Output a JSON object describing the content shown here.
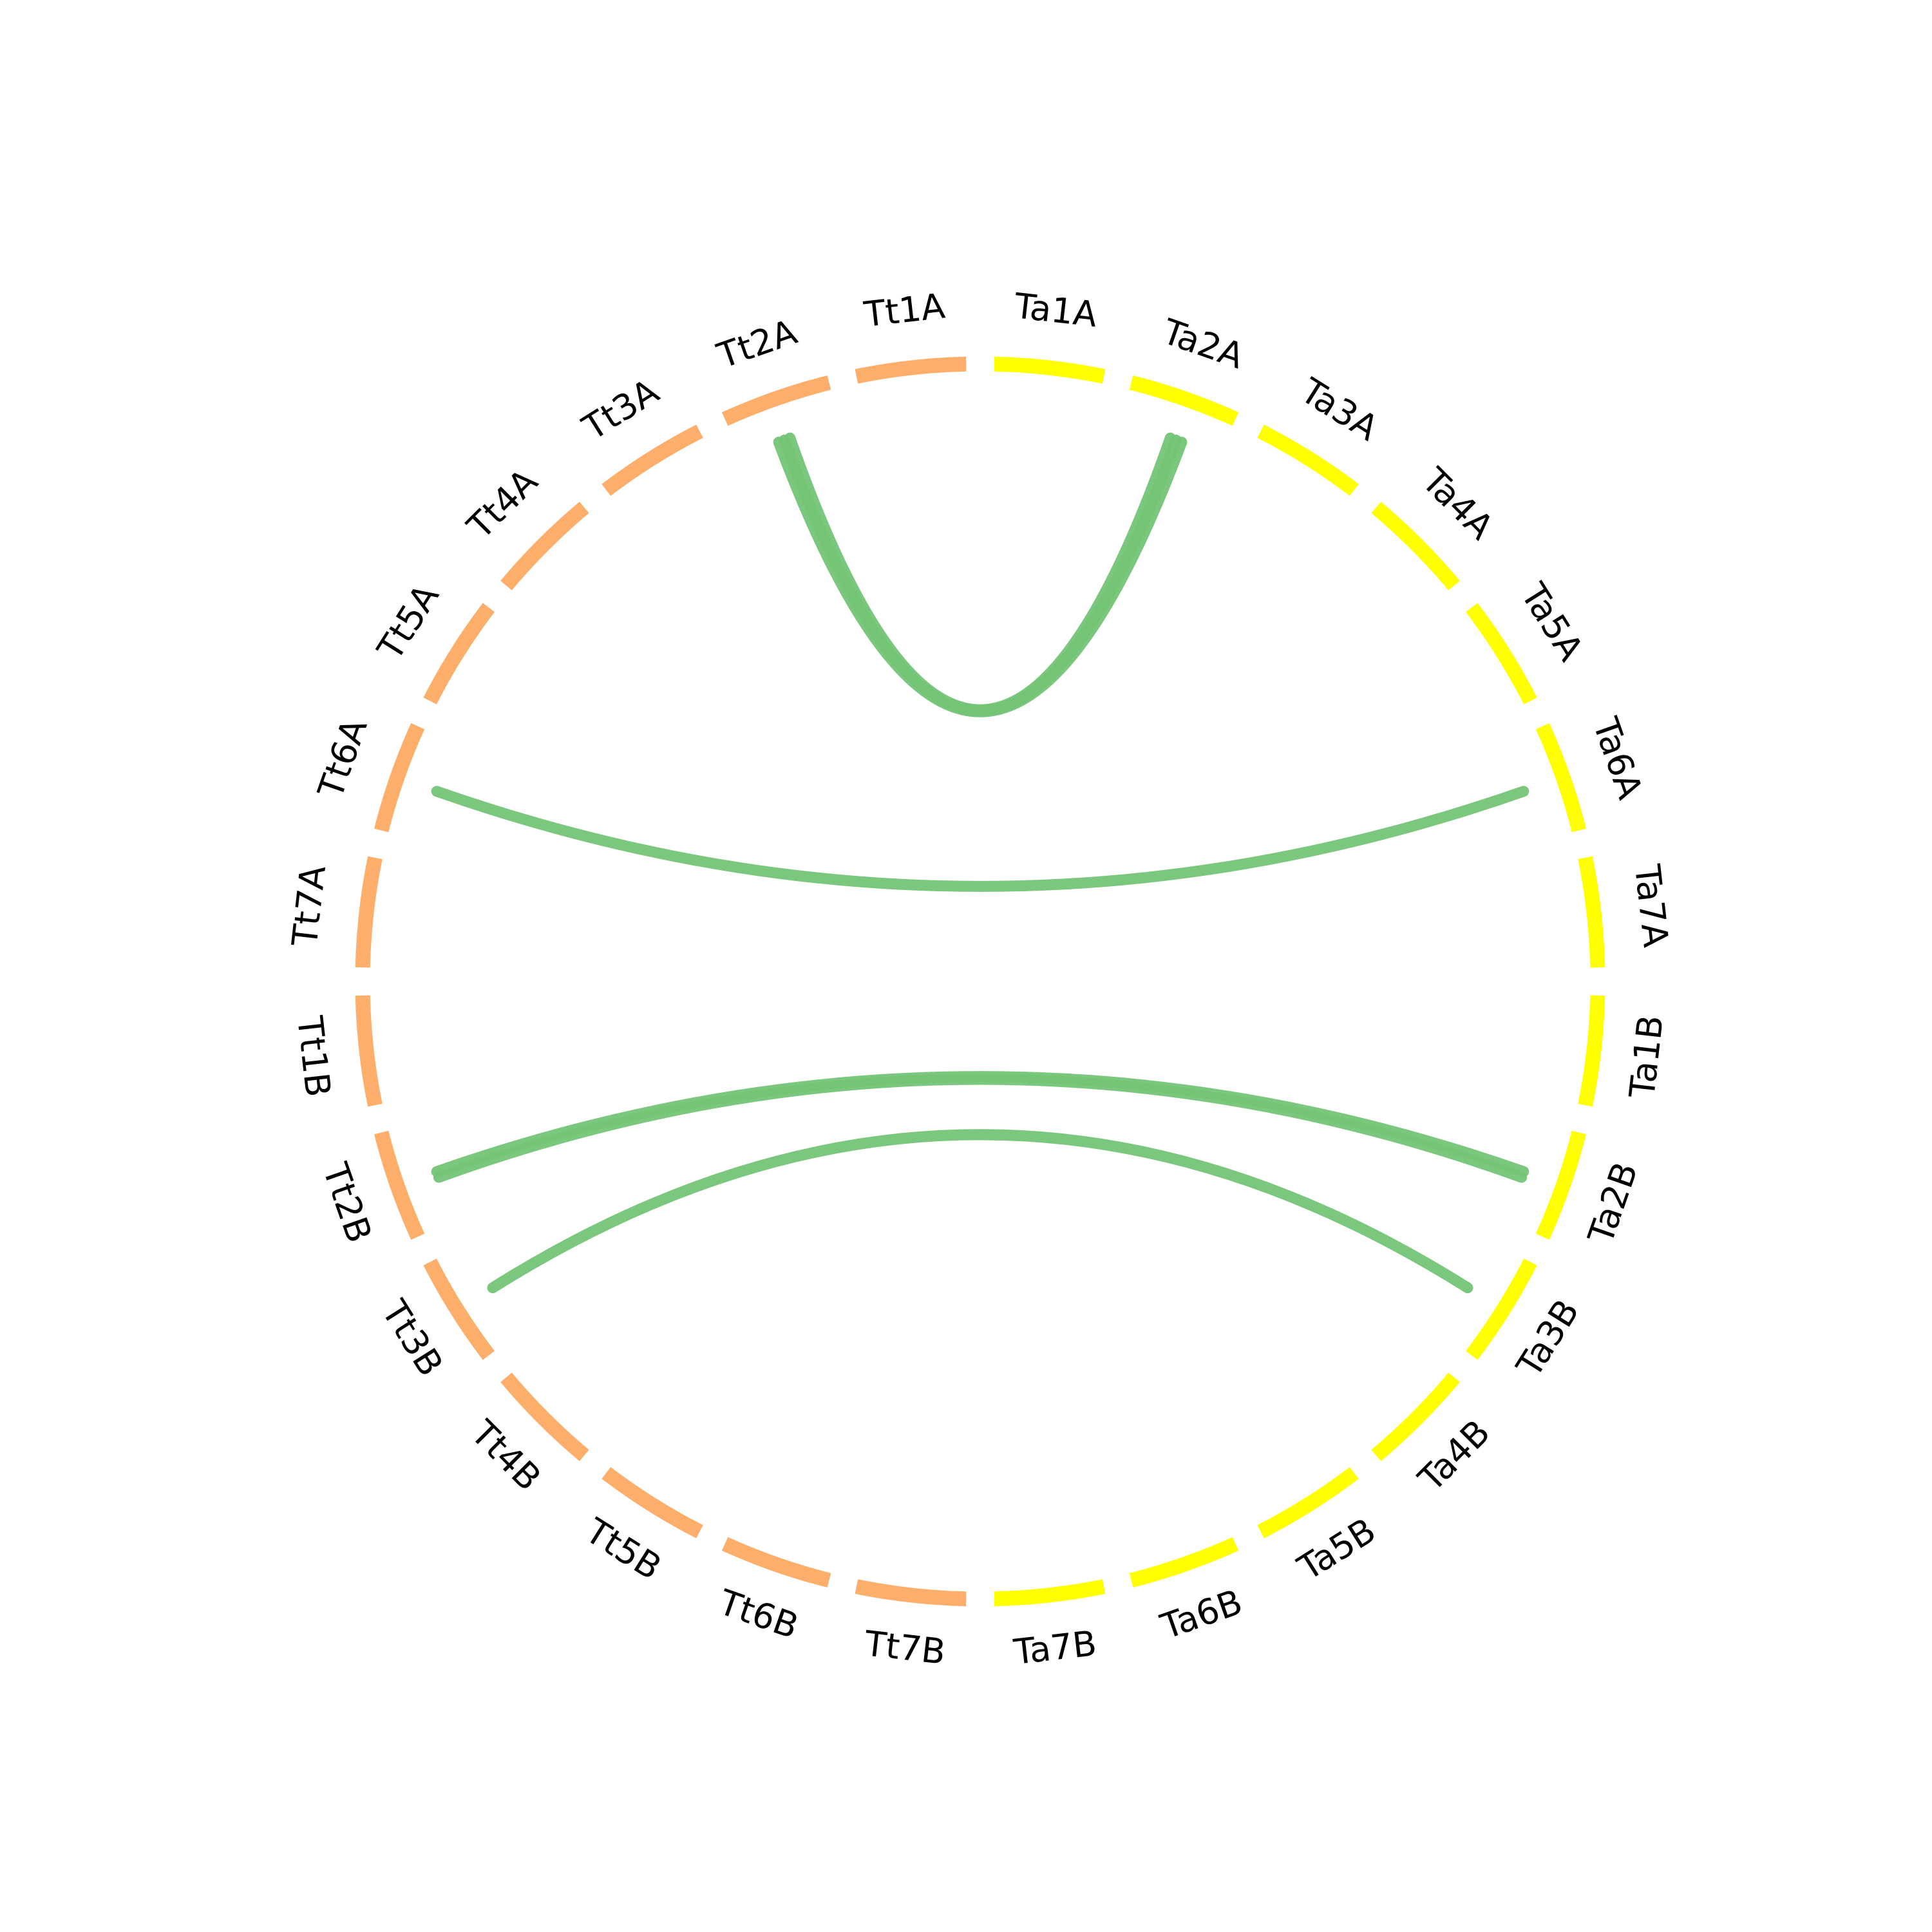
{
  "segments": [
    {
      "label": "Ta1A",
      "color": "#ffff00"
    },
    {
      "label": "Ta2A",
      "color": "#ffff00"
    },
    {
      "label": "Ta3A",
      "color": "#ffff00"
    },
    {
      "label": "Ta4A",
      "color": "#ffff00"
    },
    {
      "label": "Ta5A",
      "color": "#ffff00"
    },
    {
      "label": "Ta6A",
      "color": "#ffff00"
    },
    {
      "label": "Ta7A",
      "color": "#ffff00"
    },
    {
      "label": "Ta1B",
      "color": "#ffff00"
    },
    {
      "label": "Ta2B",
      "color": "#ffff00"
    },
    {
      "label": "Ta3B",
      "color": "#ffff00"
    },
    {
      "label": "Ta4B",
      "color": "#ffff00"
    },
    {
      "label": "Ta5B",
      "color": "#ffff00"
    },
    {
      "label": "Ta6B",
      "color": "#ffff00"
    },
    {
      "label": "Ta7B",
      "color": "#ffff00"
    },
    {
      "label": "Tt7B",
      "color": "#fdae6b"
    },
    {
      "label": "Tt6B",
      "color": "#fdae6b"
    },
    {
      "label": "Tt5B",
      "color": "#fdae6b"
    },
    {
      "label": "Tt4B",
      "color": "#fdae6b"
    },
    {
      "label": "Tt3B",
      "color": "#fdae6b"
    },
    {
      "label": "Tt2B",
      "color": "#fdae6b"
    },
    {
      "label": "Tt1B",
      "color": "#fdae6b"
    },
    {
      "label": "Tt7A",
      "color": "#fdae6b"
    },
    {
      "label": "Tt6A",
      "color": "#fdae6b"
    },
    {
      "label": "Tt5A",
      "color": "#fdae6b"
    },
    {
      "label": "Tt4A",
      "color": "#fdae6b"
    },
    {
      "label": "Tt3A",
      "color": "#fdae6b"
    },
    {
      "label": "Tt2A",
      "color": "#fdae6b"
    },
    {
      "label": "Tt1A",
      "color": "#fdae6b"
    }
  ],
  "links": [
    {
      "source": "Tt2A",
      "target": "Ta2A"
    },
    {
      "source": "Tt2A",
      "target": "Ta2A"
    },
    {
      "source": "Tt2A",
      "target": "Ta2A"
    },
    {
      "source": "Tt6A",
      "target": "Ta6A"
    },
    {
      "source": "Tt2B",
      "target": "Ta2B"
    },
    {
      "source": "Tt2B",
      "target": "Ta2B"
    },
    {
      "source": "Tt3B",
      "target": "Ta3B"
    }
  ],
  "link_color": "#74c476"
}
